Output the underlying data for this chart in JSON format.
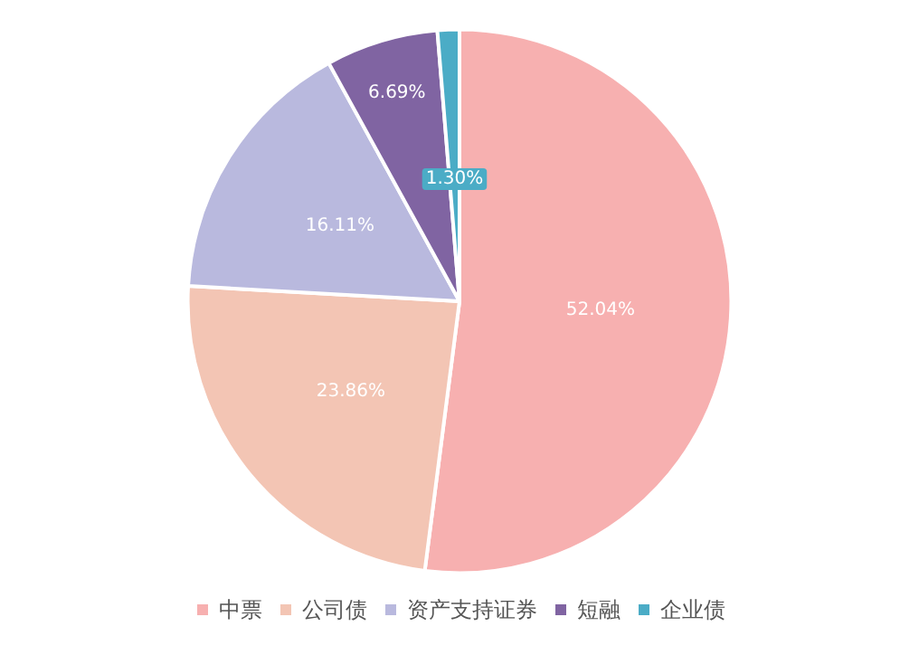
{
  "chart_data": {
    "type": "pie",
    "categories": [
      "中票",
      "公司债",
      "资产支持证券",
      "短融",
      "企业债"
    ],
    "values": [
      52.04,
      23.86,
      16.11,
      6.69,
      1.3
    ],
    "value_labels": [
      "52.04%",
      "23.86%",
      "16.11%",
      "6.69%",
      "1.30%"
    ],
    "colors": [
      "#f7b0b0",
      "#f3c5b4",
      "#b9b9de",
      "#8064a2",
      "#4bacc6"
    ],
    "legend": "bottom"
  }
}
